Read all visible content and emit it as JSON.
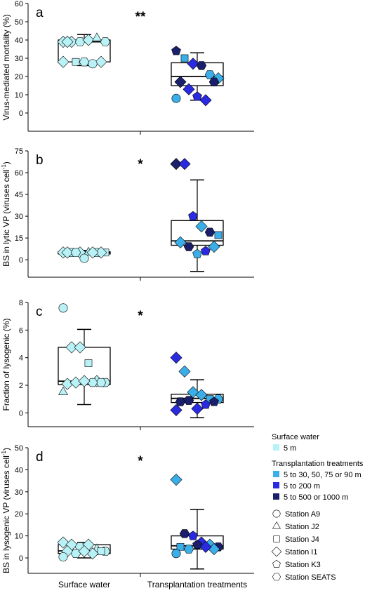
{
  "figure": {
    "x_categories": [
      "Surface water",
      "Transplantation treatments"
    ]
  },
  "colors": {
    "surface": "#b8f1f6",
    "t_30_90": "#3aaee8",
    "t_200": "#2a2ae0",
    "t_500_1000": "#1a1f6b",
    "outline": "#000000"
  },
  "legend": {
    "surface_title": "Surface water",
    "surface_items": [
      {
        "label": "5 m",
        "color": "#b8f1f6"
      }
    ],
    "treat_title": "Transplantation treatments",
    "treat_items": [
      {
        "label": "5 to 30, 50, 75 or 90 m",
        "color": "#3aaee8"
      },
      {
        "label": "5 to 200 m",
        "color": "#2a2ae0"
      },
      {
        "label": "5 to 500 or 1000 m",
        "color": "#1a1f6b"
      }
    ],
    "stations": [
      {
        "label": "Station A9",
        "shape": "circle"
      },
      {
        "label": "Station J2",
        "shape": "triangle"
      },
      {
        "label": "Station J4",
        "shape": "square"
      },
      {
        "label": "Station I1",
        "shape": "diamond"
      },
      {
        "label": "Station K3",
        "shape": "pentagon"
      },
      {
        "label": "Station SEATS",
        "shape": "hexagon"
      }
    ]
  },
  "chart_data": [
    {
      "type": "box",
      "panel": "a",
      "ylabel": "Virus-mediated mortality (%)",
      "ylim": [
        -10,
        60
      ],
      "yticks": [
        0,
        10,
        20,
        30,
        40,
        50,
        60
      ],
      "significance": "**",
      "groups": [
        {
          "name": "Surface water",
          "box": {
            "low": 26,
            "q1": 28,
            "median": 39,
            "q3": 40,
            "high": 43
          },
          "points": [
            {
              "y": 39,
              "shape": "diamond",
              "color": "surface"
            },
            {
              "y": 39,
              "shape": "diamond",
              "color": "surface"
            },
            {
              "y": 39,
              "shape": "hexagon",
              "color": "surface"
            },
            {
              "y": 40,
              "shape": "diamond",
              "color": "surface"
            },
            {
              "y": 41,
              "shape": "triangle",
              "color": "surface"
            },
            {
              "y": 39,
              "shape": "hexagon",
              "color": "surface"
            },
            {
              "y": 39,
              "shape": "diamond",
              "color": "surface"
            },
            {
              "y": 28,
              "shape": "diamond",
              "color": "surface"
            },
            {
              "y": 28,
              "shape": "square",
              "color": "surface"
            },
            {
              "y": 27,
              "shape": "circle",
              "color": "surface"
            },
            {
              "y": 28,
              "shape": "hexagon",
              "color": "surface"
            },
            {
              "y": 28,
              "shape": "diamond",
              "color": "surface"
            }
          ]
        },
        {
          "name": "Transplantation treatments",
          "box": {
            "low": 7,
            "q1": 15,
            "median": 20,
            "q3": 27.5,
            "high": 33
          },
          "points": [
            {
              "y": 34,
              "shape": "pentagon",
              "color": "t_500_1000"
            },
            {
              "y": 30,
              "shape": "square",
              "color": "t_30_90"
            },
            {
              "y": 27,
              "shape": "diamond",
              "color": "t_200"
            },
            {
              "y": 26,
              "shape": "hexagon",
              "color": "t_500_1000"
            },
            {
              "y": 21,
              "shape": "hexagon",
              "color": "t_30_90"
            },
            {
              "y": 19,
              "shape": "diamond",
              "color": "t_30_90"
            },
            {
              "y": 17,
              "shape": "diamond",
              "color": "t_500_1000"
            },
            {
              "y": 17,
              "shape": "hexagon",
              "color": "t_500_1000"
            },
            {
              "y": 13,
              "shape": "diamond",
              "color": "t_200"
            },
            {
              "y": 7,
              "shape": "diamond",
              "color": "t_200"
            },
            {
              "y": 9,
              "shape": "pentagon",
              "color": "t_200"
            },
            {
              "y": 8,
              "shape": "circle",
              "color": "t_30_90"
            }
          ]
        }
      ]
    },
    {
      "type": "box",
      "panel": "b",
      "ylabel": "BS in lytic VP (viruses cell",
      "ylabel_sup": "-1",
      "ylabel_end": ")",
      "ylim": [
        -12,
        75
      ],
      "yticks": [
        0,
        15,
        30,
        45,
        60,
        75
      ],
      "significance": "*",
      "groups": [
        {
          "name": "Surface water",
          "box": {
            "low": 3.5,
            "q1": 4,
            "median": 5,
            "q3": 5.5,
            "high": 6.5
          },
          "points": [
            {
              "y": 5,
              "shape": "diamond",
              "color": "surface"
            },
            {
              "y": 5,
              "shape": "hexagon",
              "color": "surface"
            },
            {
              "y": 5,
              "shape": "diamond",
              "color": "surface"
            },
            {
              "y": 5,
              "shape": "triangle",
              "color": "surface"
            },
            {
              "y": 5,
              "shape": "hexagon",
              "color": "surface"
            },
            {
              "y": 5,
              "shape": "square",
              "color": "surface"
            },
            {
              "y": 5,
              "shape": "diamond",
              "color": "surface"
            },
            {
              "y": 5,
              "shape": "diamond",
              "color": "surface"
            },
            {
              "y": 5,
              "shape": "hexagon",
              "color": "surface"
            },
            {
              "y": 5,
              "shape": "diamond",
              "color": "surface"
            },
            {
              "y": 1,
              "shape": "circle",
              "color": "surface"
            }
          ]
        },
        {
          "name": "Transplantation treatments",
          "box": {
            "low": -8,
            "q1": 10,
            "median": 13,
            "q3": 27,
            "high": 55
          },
          "points": [
            {
              "y": 66,
              "shape": "diamond",
              "color": "t_500_1000"
            },
            {
              "y": 66,
              "shape": "diamond",
              "color": "t_200"
            },
            {
              "y": 30,
              "shape": "pentagon",
              "color": "t_200"
            },
            {
              "y": 23,
              "shape": "diamond",
              "color": "t_30_90"
            },
            {
              "y": 19,
              "shape": "hexagon",
              "color": "t_500_1000"
            },
            {
              "y": 17,
              "shape": "square",
              "color": "t_30_90"
            },
            {
              "y": 12,
              "shape": "diamond",
              "color": "t_30_90"
            },
            {
              "y": 9,
              "shape": "diamond",
              "color": "t_30_90"
            },
            {
              "y": 9,
              "shape": "hexagon",
              "color": "t_500_1000"
            },
            {
              "y": 6,
              "shape": "pentagon",
              "color": "t_200"
            },
            {
              "y": 4,
              "shape": "pentagon",
              "color": "t_30_90"
            }
          ]
        }
      ]
    },
    {
      "type": "box",
      "panel": "c",
      "ylabel": "Fraction of lysogenic (%)",
      "ylim": [
        -1,
        8
      ],
      "yticks": [
        0,
        2,
        4,
        6,
        8
      ],
      "significance": "*",
      "groups": [
        {
          "name": "Surface water",
          "box": {
            "low": 0.6,
            "q1": 2.05,
            "median": 2.3,
            "q3": 4.75,
            "high": 6.05
          },
          "points": [
            {
              "y": 7.6,
              "shape": "circle",
              "color": "surface"
            },
            {
              "y": 4.75,
              "shape": "diamond",
              "color": "surface"
            },
            {
              "y": 4.75,
              "shape": "diamond",
              "color": "surface"
            },
            {
              "y": 3.6,
              "shape": "square",
              "color": "surface"
            },
            {
              "y": 2.3,
              "shape": "diamond",
              "color": "surface"
            },
            {
              "y": 2.2,
              "shape": "hexagon",
              "color": "surface"
            },
            {
              "y": 2.1,
              "shape": "diamond",
              "color": "surface"
            },
            {
              "y": 2.2,
              "shape": "hexagon",
              "color": "surface"
            },
            {
              "y": 2.2,
              "shape": "diamond",
              "color": "surface"
            },
            {
              "y": 2.2,
              "shape": "hexagon",
              "color": "surface"
            },
            {
              "y": 2.3,
              "shape": "diamond",
              "color": "surface"
            },
            {
              "y": 1.5,
              "shape": "triangle",
              "color": "surface"
            }
          ]
        },
        {
          "name": "Transplantation treatments",
          "box": {
            "low": -0.35,
            "q1": 0.75,
            "median": 1.05,
            "q3": 1.35,
            "high": 2.4
          },
          "points": [
            {
              "y": 4.0,
              "shape": "diamond",
              "color": "t_200"
            },
            {
              "y": 3.0,
              "shape": "diamond",
              "color": "t_30_90"
            },
            {
              "y": 1.5,
              "shape": "diamond",
              "color": "t_30_90"
            },
            {
              "y": 1.3,
              "shape": "diamond",
              "color": "t_30_90"
            },
            {
              "y": 1.0,
              "shape": "square",
              "color": "t_30_90"
            },
            {
              "y": 1.0,
              "shape": "hexagon",
              "color": "t_30_90"
            },
            {
              "y": 0.8,
              "shape": "hexagon",
              "color": "t_500_1000"
            },
            {
              "y": 0.8,
              "shape": "pentagon",
              "color": "t_500_1000"
            },
            {
              "y": 0.9,
              "shape": "hexagon",
              "color": "t_500_1000"
            },
            {
              "y": 0.6,
              "shape": "pentagon",
              "color": "t_200"
            },
            {
              "y": 0.3,
              "shape": "diamond",
              "color": "t_200"
            },
            {
              "y": 0.2,
              "shape": "diamond",
              "color": "t_200"
            }
          ]
        }
      ]
    },
    {
      "type": "box",
      "panel": "d",
      "ylabel": "BS in lysogenic VP (viruses cell",
      "ylabel_sup": "-1",
      "ylabel_end": ")",
      "ylim": [
        -7,
        50
      ],
      "yticks": [
        0,
        10,
        20,
        30,
        40,
        50
      ],
      "significance": "*",
      "groups": [
        {
          "name": "Surface water",
          "box": {
            "low": 0,
            "q1": 2,
            "median": 3.2,
            "q3": 6,
            "high": 7
          },
          "points": [
            {
              "y": 7,
              "shape": "diamond",
              "color": "surface"
            },
            {
              "y": 6,
              "shape": "diamond",
              "color": "surface"
            },
            {
              "y": 5,
              "shape": "hexagon",
              "color": "surface"
            },
            {
              "y": 6,
              "shape": "diamond",
              "color": "surface"
            },
            {
              "y": 4,
              "shape": "triangle",
              "color": "surface"
            },
            {
              "y": 3,
              "shape": "hexagon",
              "color": "surface"
            },
            {
              "y": 3,
              "shape": "diamond",
              "color": "surface"
            },
            {
              "y": 3,
              "shape": "square",
              "color": "surface"
            },
            {
              "y": 2,
              "shape": "hexagon",
              "color": "surface"
            },
            {
              "y": 2,
              "shape": "diamond",
              "color": "surface"
            },
            {
              "y": 3,
              "shape": "diamond",
              "color": "surface"
            },
            {
              "y": 0.5,
              "shape": "circle",
              "color": "surface"
            }
          ]
        },
        {
          "name": "Transplantation treatments",
          "box": {
            "low": -5,
            "q1": 4,
            "median": 5.5,
            "q3": 10,
            "high": 22
          },
          "points": [
            {
              "y": 35.5,
              "shape": "diamond",
              "color": "t_30_90"
            },
            {
              "y": 11,
              "shape": "hexagon",
              "color": "t_500_1000"
            },
            {
              "y": 10,
              "shape": "pentagon",
              "color": "t_200"
            },
            {
              "y": 7,
              "shape": "diamond",
              "color": "t_200"
            },
            {
              "y": 6,
              "shape": "diamond",
              "color": "t_30_90"
            },
            {
              "y": 5,
              "shape": "hexagon",
              "color": "t_500_1000"
            },
            {
              "y": 5,
              "shape": "square",
              "color": "t_30_90"
            },
            {
              "y": 4,
              "shape": "diamond",
              "color": "t_30_90"
            },
            {
              "y": 4,
              "shape": "hexagon",
              "color": "t_30_90"
            },
            {
              "y": 5,
              "shape": "diamond",
              "color": "t_200"
            },
            {
              "y": 6,
              "shape": "pentagon",
              "color": "t_500_1000"
            },
            {
              "y": 2,
              "shape": "circle",
              "color": "t_30_90"
            }
          ]
        }
      ]
    }
  ]
}
